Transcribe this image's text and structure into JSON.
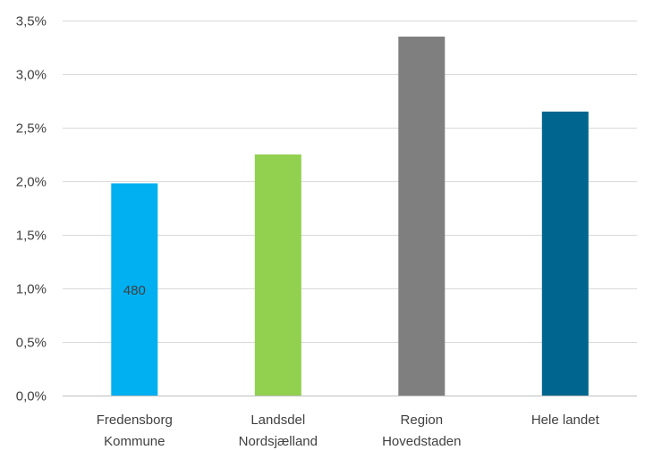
{
  "chart_data": {
    "type": "bar",
    "title": "",
    "xlabel": "",
    "ylabel": "",
    "categories": [
      [
        "Fredensborg",
        "Kommune"
      ],
      [
        "Landsdel",
        "Nordsjælland"
      ],
      [
        "Region",
        "Hovedstaden"
      ],
      [
        "Hele landet"
      ]
    ],
    "values": [
      1.98,
      2.25,
      3.35,
      2.65
    ],
    "bar_colors": [
      "#00b0f0",
      "#92d050",
      "#7f7f7f",
      "#006690"
    ],
    "data_labels": [
      "480",
      "",
      "",
      ""
    ],
    "ylim": [
      0,
      3.5
    ],
    "yticks": [
      0,
      0.5,
      1.0,
      1.5,
      2.0,
      2.5,
      3.0,
      3.5
    ],
    "ytick_labels": [
      "0,0%",
      "0,5%",
      "1,0%",
      "1,5%",
      "2,0%",
      "2,5%",
      "3,0%",
      "3,5%"
    ],
    "grid": true,
    "legend": "none"
  }
}
